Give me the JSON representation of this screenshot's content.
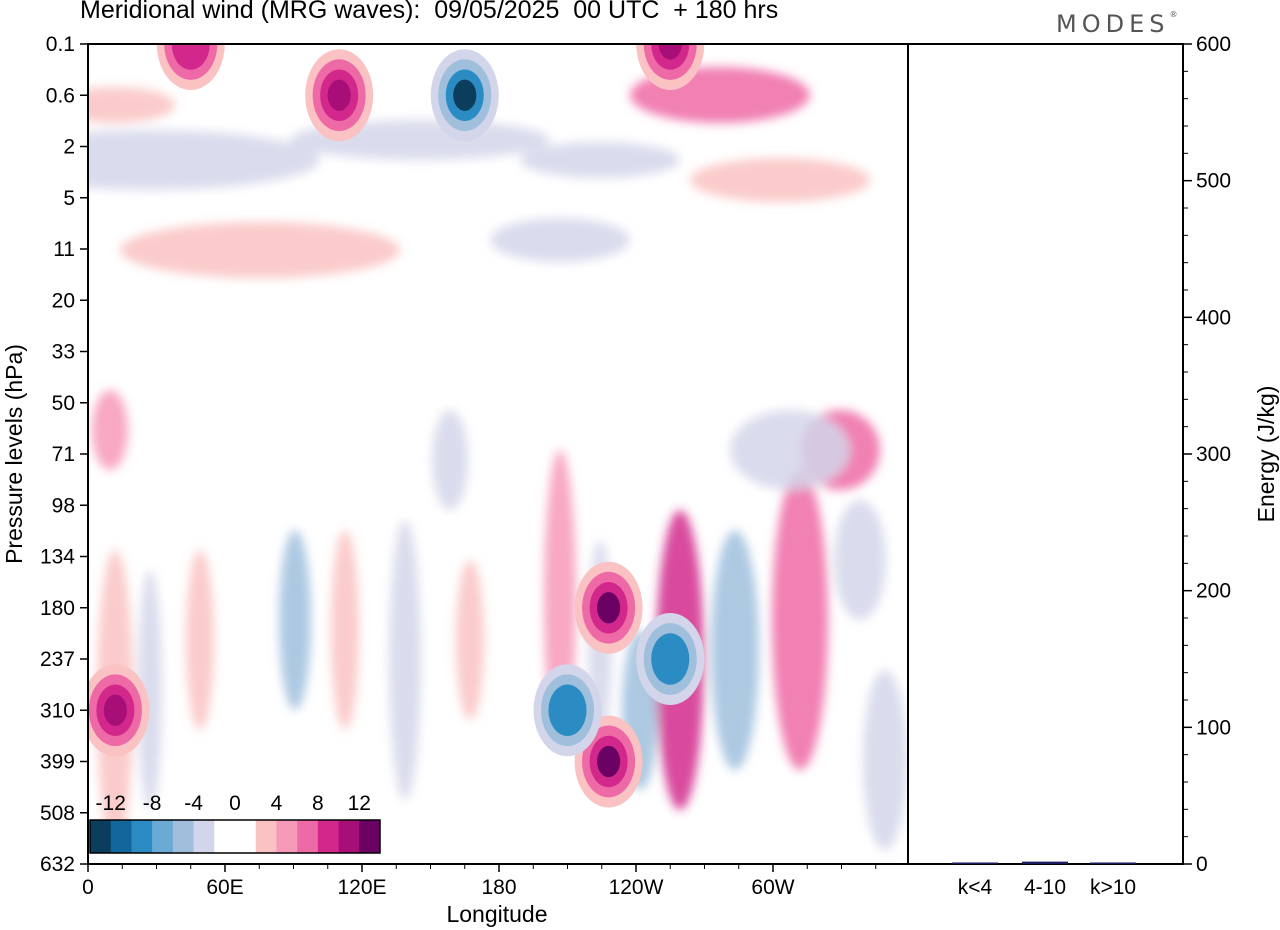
{
  "title": "Meridional wind (MRG waves):  09/05/2025  00 UTC  + 180 hrs",
  "brand": "MODES",
  "brand_mark": "®",
  "chart_data": [
    {
      "type": "heatmap",
      "variable": "Meridional wind (MRG waves)",
      "xlabel": "Longitude",
      "ylabel": "Pressure levels (hPa)",
      "x_ticks": [
        "0",
        "60E",
        "120E",
        "180",
        "120W",
        "60W"
      ],
      "y_ticks": [
        "0.1",
        "0.6",
        "2",
        "5",
        "11",
        "20",
        "33",
        "50",
        "71",
        "98",
        "134",
        "180",
        "237",
        "310",
        "399",
        "508",
        "632"
      ],
      "colorbar": {
        "labels": [
          "-12",
          "-8",
          "-4",
          "0",
          "4",
          "8",
          "12"
        ],
        "colors": [
          "#0b3d5c",
          "#10679c",
          "#2b8cc4",
          "#6aaad5",
          "#9fbfdd",
          "#d3d6ea",
          "#ffffff",
          "#ffffff",
          "#fac2c2",
          "#f799b8",
          "#ee6aa6",
          "#d2288c",
          "#a80e78",
          "#6b0163"
        ]
      },
      "features": [
        {
          "lon": 165,
          "level": "0.6",
          "value": -14
        },
        {
          "lon": 110,
          "level": "0.6",
          "value": 10
        },
        {
          "lon": 45,
          "level": "0.1",
          "value": 9
        },
        {
          "lon": 255,
          "level": "0.1",
          "value": 11
        },
        {
          "lon": 228,
          "level": "180",
          "value": 13
        },
        {
          "lon": 228,
          "level": "399",
          "value": 13
        },
        {
          "lon": 255,
          "level": "237",
          "value": -10
        },
        {
          "lon": 12,
          "level": "310",
          "value": 11
        },
        {
          "lon": 210,
          "level": "310",
          "value": -9
        }
      ]
    },
    {
      "type": "bar",
      "categories": [
        "k<4",
        "4-10",
        "k>10"
      ],
      "values": [
        0,
        1,
        0
      ],
      "ylabel": "Energy (J/kg)",
      "ylim": [
        0,
        600
      ],
      "y_ticks": [
        "0",
        "100",
        "200",
        "300",
        "400",
        "500",
        "600"
      ],
      "colors": {
        "bar": "#1a1a5e"
      }
    }
  ]
}
